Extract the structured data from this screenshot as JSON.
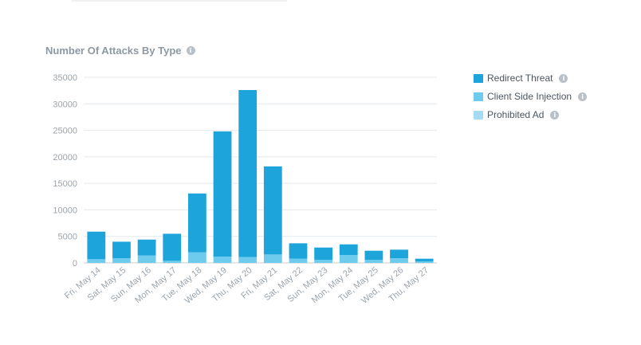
{
  "title": "Number Of Attacks By Type",
  "icons": {
    "info": "info-icon"
  },
  "chart_data": {
    "type": "bar",
    "stacked": true,
    "title": "Number Of Attacks By Type",
    "xlabel": "",
    "ylabel": "",
    "ylim": [
      0,
      35000
    ],
    "yticks": [
      "0",
      "5000",
      "10000",
      "15000",
      "20000",
      "25000",
      "30000",
      "35000"
    ],
    "grid": true,
    "legend_position": "right",
    "categories": [
      "Fri, May 14",
      "Sat, May 15",
      "Sun, May 16",
      "Mon, May 17",
      "Tue, May 18",
      "Wed, May 19",
      "Thu, May 20",
      "Fri, May 21",
      "Sat, May 22",
      "Sun, May 23",
      "Mon, May 24",
      "Tue, May 25",
      "Wed, May 26",
      "Thu, May 27"
    ],
    "series": [
      {
        "name": "Prohibited Ad",
        "color": "#a6dcf2",
        "values": [
          0,
          0,
          0,
          0,
          0,
          0,
          0,
          0,
          0,
          0,
          0,
          0,
          0,
          0
        ]
      },
      {
        "name": "Client Side Injection",
        "color": "#6fcbee",
        "values": [
          700,
          900,
          1400,
          400,
          2000,
          1200,
          1100,
          1600,
          800,
          600,
          1500,
          600,
          900,
          300
        ]
      },
      {
        "name": "Redirect Threat",
        "color": "#1ca4db",
        "values": [
          5200,
          3100,
          3000,
          5100,
          11100,
          23600,
          31500,
          16600,
          2900,
          2300,
          2000,
          1700,
          1600,
          500
        ]
      }
    ]
  },
  "legend": [
    {
      "label": "Redirect Threat",
      "color": "#1ca4db"
    },
    {
      "label": "Client Side Injection",
      "color": "#6fcbee"
    },
    {
      "label": "Prohibited Ad",
      "color": "#a6dcf2"
    }
  ]
}
